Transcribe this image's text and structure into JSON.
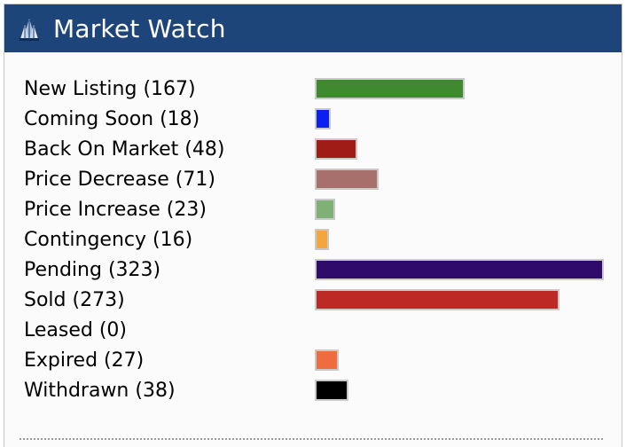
{
  "widget": {
    "title": "Market Watch",
    "logo_icon": "mls-logo-icon"
  },
  "bar_scale_max": 323,
  "items": [
    {
      "status": "New Listing",
      "count": 167,
      "color": "#3f8a2e"
    },
    {
      "status": "Coming Soon",
      "count": 18,
      "color": "#0a1ff2"
    },
    {
      "status": "Back On Market",
      "count": 48,
      "color": "#a01c16"
    },
    {
      "status": "Price Decrease",
      "count": 71,
      "color": "#a8706a"
    },
    {
      "status": "Price Increase",
      "count": 23,
      "color": "#7fb176"
    },
    {
      "status": "Contingency",
      "count": 16,
      "color": "#f3a63e"
    },
    {
      "status": "Pending",
      "count": 323,
      "color": "#2f0c6a"
    },
    {
      "status": "Sold",
      "count": 273,
      "color": "#bd2a26"
    },
    {
      "status": "Leased",
      "count": 0,
      "color": "#999999"
    },
    {
      "status": "Expired",
      "count": 27,
      "color": "#ee6c40"
    },
    {
      "status": "Withdrawn",
      "count": 38,
      "color": "#000000"
    }
  ]
}
